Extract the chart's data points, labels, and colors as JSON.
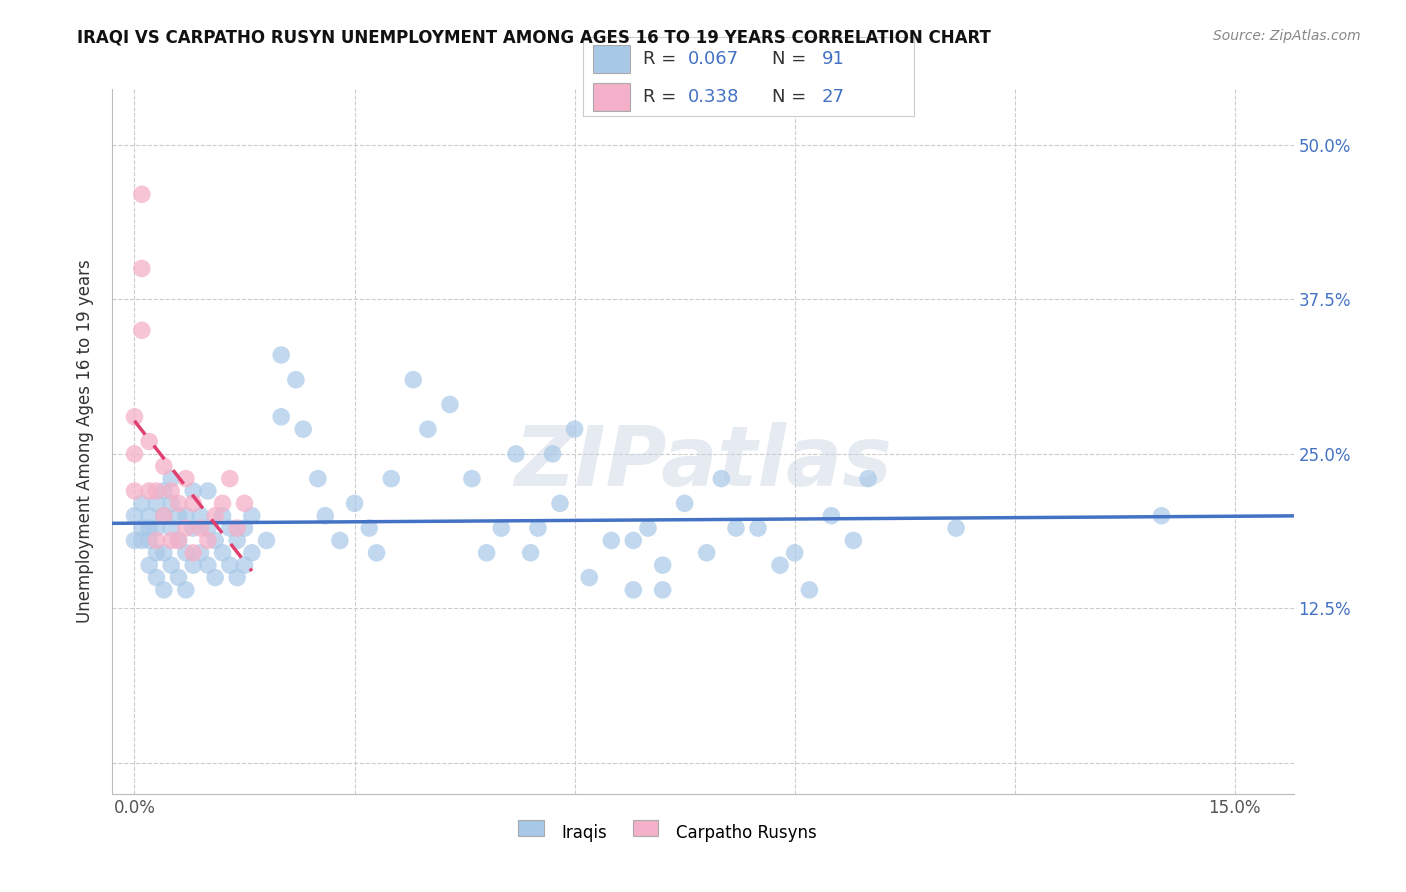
{
  "title": "IRAQI VS CARPATHO RUSYN UNEMPLOYMENT AMONG AGES 16 TO 19 YEARS CORRELATION CHART",
  "source": "Source: ZipAtlas.com",
  "xlim": [
    -0.003,
    0.158
  ],
  "ylim": [
    -0.025,
    0.545
  ],
  "x_ticks": [
    0.0,
    0.03,
    0.06,
    0.09,
    0.12,
    0.15
  ],
  "x_tick_labels": [
    "0.0%",
    "",
    "",
    "",
    "",
    "15.0%"
  ],
  "y_ticks": [
    0.0,
    0.125,
    0.25,
    0.375,
    0.5
  ],
  "y_tick_labels_right": [
    "",
    "12.5%",
    "25.0%",
    "37.5%",
    "50.0%"
  ],
  "iraqi_R": 0.067,
  "iraqi_N": 91,
  "carpatho_R": 0.338,
  "carpatho_N": 27,
  "iraqi_dot_color": "#a8c8e8",
  "iraqi_line_color": "#4472c4",
  "carpatho_dot_color": "#f4b0c8",
  "carpatho_line_color": "#e04070",
  "legend_box_edge": "#cccccc",
  "R_text_color": "#4472c4",
  "N_text_color": "#4472c4",
  "ylabel": "Unemployment Among Ages 16 to 19 years",
  "legend_label1": "Iraqis",
  "legend_label2": "Carpatho Rusyns",
  "watermark": "ZIPatlas",
  "grid_color": "#cccccc",
  "iraqi_x": [
    0.0,
    0.0,
    0.001,
    0.001,
    0.001,
    0.002,
    0.002,
    0.002,
    0.002,
    0.003,
    0.003,
    0.003,
    0.003,
    0.004,
    0.004,
    0.004,
    0.004,
    0.005,
    0.005,
    0.005,
    0.005,
    0.006,
    0.006,
    0.006,
    0.007,
    0.007,
    0.007,
    0.008,
    0.008,
    0.008,
    0.009,
    0.009,
    0.01,
    0.01,
    0.01,
    0.011,
    0.011,
    0.012,
    0.012,
    0.013,
    0.013,
    0.014,
    0.014,
    0.015,
    0.015,
    0.016,
    0.016,
    0.018,
    0.02,
    0.02,
    0.022,
    0.023,
    0.025,
    0.026,
    0.028,
    0.03,
    0.032,
    0.033,
    0.035,
    0.038,
    0.04,
    0.043,
    0.046,
    0.05,
    0.054,
    0.057,
    0.06,
    0.065,
    0.07,
    0.075,
    0.048,
    0.052,
    0.055,
    0.058,
    0.062,
    0.068,
    0.072,
    0.078,
    0.082,
    0.088,
    0.092,
    0.098,
    0.08,
    0.085,
    0.09,
    0.095,
    0.1,
    0.112,
    0.14,
    0.072,
    0.068
  ],
  "iraqi_y": [
    0.18,
    0.2,
    0.19,
    0.21,
    0.18,
    0.16,
    0.19,
    0.2,
    0.18,
    0.15,
    0.17,
    0.19,
    0.21,
    0.14,
    0.17,
    0.2,
    0.22,
    0.16,
    0.19,
    0.21,
    0.23,
    0.15,
    0.18,
    0.2,
    0.14,
    0.17,
    0.2,
    0.16,
    0.19,
    0.22,
    0.17,
    0.2,
    0.16,
    0.19,
    0.22,
    0.15,
    0.18,
    0.17,
    0.2,
    0.16,
    0.19,
    0.15,
    0.18,
    0.16,
    0.19,
    0.17,
    0.2,
    0.18,
    0.33,
    0.28,
    0.31,
    0.27,
    0.23,
    0.2,
    0.18,
    0.21,
    0.19,
    0.17,
    0.23,
    0.31,
    0.27,
    0.29,
    0.23,
    0.19,
    0.17,
    0.25,
    0.27,
    0.18,
    0.19,
    0.21,
    0.17,
    0.25,
    0.19,
    0.21,
    0.15,
    0.18,
    0.14,
    0.17,
    0.19,
    0.16,
    0.14,
    0.18,
    0.23,
    0.19,
    0.17,
    0.2,
    0.23,
    0.19,
    0.2,
    0.16,
    0.14
  ],
  "carpatho_x": [
    0.0,
    0.0,
    0.0,
    0.001,
    0.001,
    0.001,
    0.002,
    0.002,
    0.003,
    0.003,
    0.004,
    0.004,
    0.005,
    0.005,
    0.006,
    0.006,
    0.007,
    0.007,
    0.008,
    0.008,
    0.009,
    0.01,
    0.011,
    0.012,
    0.013,
    0.014,
    0.015
  ],
  "carpatho_y": [
    0.28,
    0.22,
    0.25,
    0.46,
    0.4,
    0.35,
    0.22,
    0.26,
    0.18,
    0.22,
    0.2,
    0.24,
    0.18,
    0.22,
    0.18,
    0.21,
    0.19,
    0.23,
    0.17,
    0.21,
    0.19,
    0.18,
    0.2,
    0.21,
    0.23,
    0.19,
    0.21
  ]
}
